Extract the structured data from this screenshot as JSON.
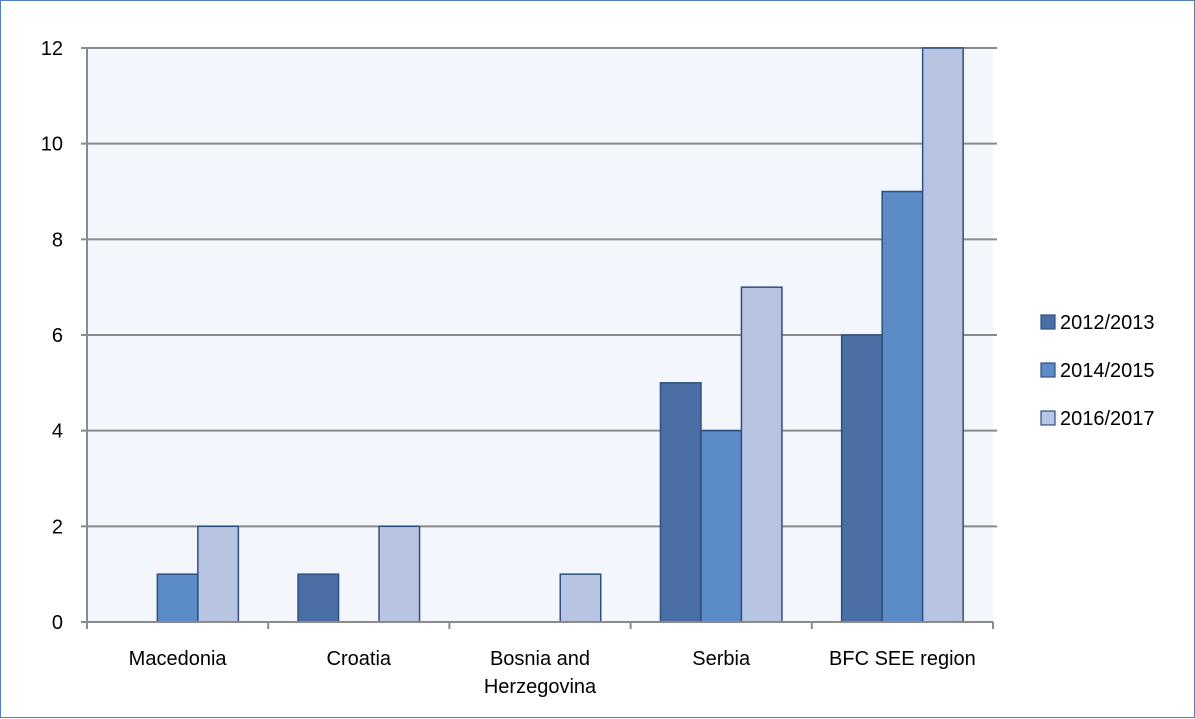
{
  "chart_data": {
    "type": "bar",
    "categories": [
      [
        "Macedonia"
      ],
      [
        "Croatia"
      ],
      [
        "Bosnia and",
        "Herzegovina"
      ],
      [
        "Serbia"
      ],
      [
        "BFC SEE region"
      ]
    ],
    "series": [
      {
        "name": "2012/2013",
        "color": "#4a6fa5",
        "values": [
          0,
          1,
          0,
          5,
          6
        ]
      },
      {
        "name": "2014/2015",
        "color": "#5b8cc8",
        "values": [
          1,
          0,
          0,
          4,
          9
        ]
      },
      {
        "name": "2016/2017",
        "color": "#b7c5e2",
        "values": [
          2,
          2,
          1,
          7,
          12
        ]
      }
    ],
    "yticks": [
      "0",
      "2",
      "4",
      "6",
      "8",
      "10",
      "12"
    ],
    "ylim": [
      0,
      12
    ],
    "grid": true,
    "legend_position": "right",
    "plot_background": "#f3f6fc",
    "bar_border": "#2f4f7f"
  }
}
